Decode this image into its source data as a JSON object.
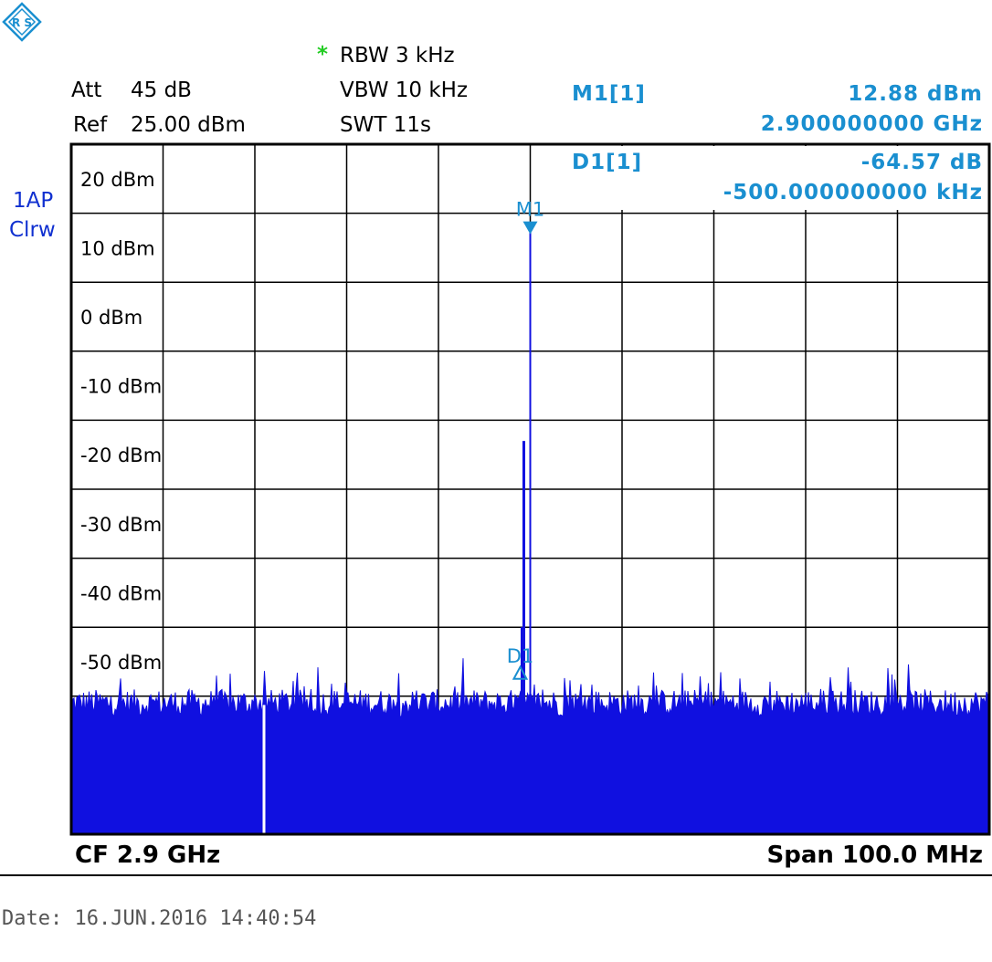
{
  "settings": {
    "rbw_star": "*",
    "rbw": "RBW  3 kHz",
    "vbw": "VBW  10 kHz",
    "swt": "SWT  11s",
    "att_label": "Att",
    "att_value": "45 dB",
    "ref_label": "Ref",
    "ref_value": "25.00 dBm"
  },
  "markers": {
    "m1_label": "M1[1]",
    "m1_level": "12.88 dBm",
    "m1_freq": "2.900000000 GHz",
    "d1_label": "D1[1]",
    "d1_level": "-64.57 dB",
    "d1_freq": "-500.000000000 kHz",
    "m1_tag": "M1",
    "d1_tag": "D1"
  },
  "trace": {
    "line1": "1AP",
    "line2": "Clrw"
  },
  "footer": {
    "center": "CF 2.9 GHz",
    "span": "Span 100.0 MHz"
  },
  "date": "Date: 16.JUN.2016  14:40:54",
  "colors": {
    "trace": "#1010e0",
    "marker": "#1a8fd0",
    "grid": "#000000",
    "logo": "#1a8fd0"
  },
  "icons": {
    "logo": "rohde-schwarz-logo"
  },
  "chart_data": {
    "type": "line",
    "xlabel": "",
    "ylabel": "",
    "x_unit": "GHz",
    "x_range": [
      2.85,
      2.95
    ],
    "ylim": [
      -75,
      25
    ],
    "yticks": [
      20,
      10,
      0,
      -10,
      -20,
      -30,
      -40,
      -50
    ],
    "ytick_labels": [
      "20 dBm",
      "10 dBm",
      "0 dBm",
      "-10 dBm",
      "-20 dBm",
      "-30 dBm",
      "-40 dBm",
      "-50 dBm"
    ],
    "grid": true,
    "noise_floor_dbm": -56,
    "series": [
      {
        "peaks": [
          {
            "x": 2.9,
            "y": 12.88
          },
          {
            "x": 2.8995,
            "y": -18
          },
          {
            "x": 2.8994,
            "y": -45
          }
        ]
      }
    ],
    "markers": [
      {
        "name": "M1",
        "x": 2.9,
        "y": 12.88
      },
      {
        "name": "D1",
        "x": 2.8995,
        "y": -51.69
      }
    ]
  }
}
